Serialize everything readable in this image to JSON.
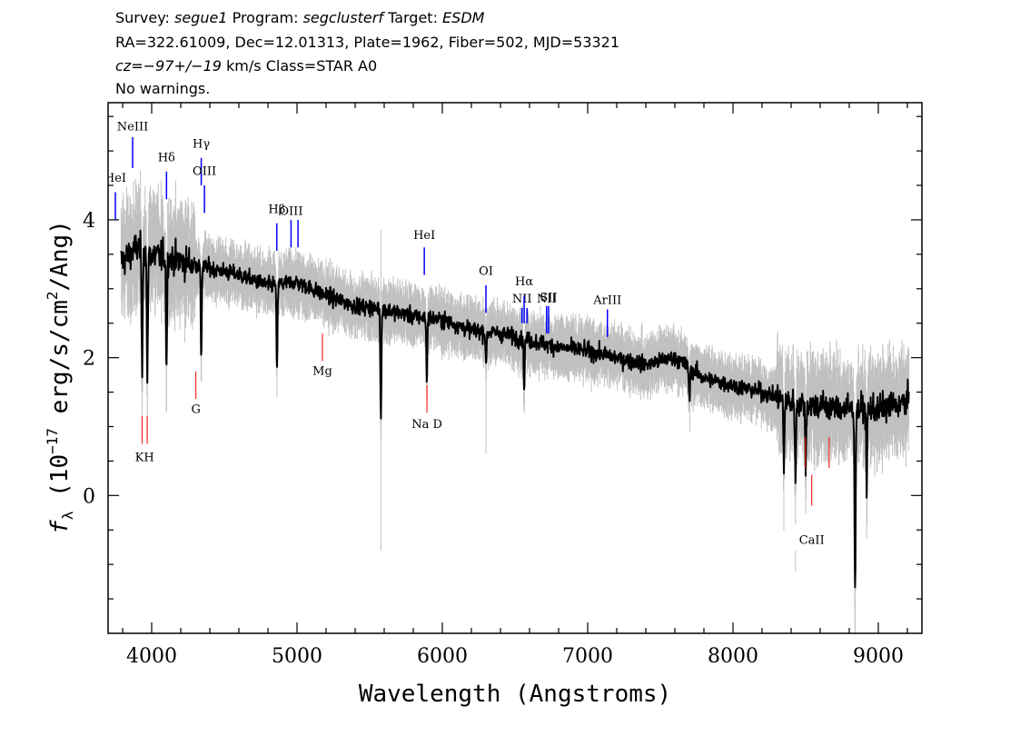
{
  "header": {
    "survey_label": "Survey:",
    "survey": "segue1",
    "program_label": "Program:",
    "program": "segclusterf",
    "target_label": "Target:",
    "target": "ESDM",
    "line2": "RA=322.61009, Dec=12.01313, Plate=1962, Fiber=502, MJD=53321",
    "cz_label": "cz=",
    "cz_value": "−97+/−19",
    "cz_units": "km/s Class=STAR A0",
    "warnings": "No warnings."
  },
  "colors": {
    "flux": "#000000",
    "noise": "#c0c0c0",
    "emission_lines": "#0000ff",
    "absorption_lines": "#ff0000"
  },
  "chart_data": {
    "type": "line",
    "xlabel": "Wavelength (Angstroms)",
    "ylabel_prefix": "f",
    "ylabel_subscript": "λ",
    "ylabel_main": " (10",
    "ylabel_exp1": "−17",
    "ylabel_mid": " erg/s/cm",
    "ylabel_exp2": "2",
    "ylabel_end": "/Ang)",
    "xlim": [
      3700,
      9300
    ],
    "ylim": [
      -2.0,
      5.7
    ],
    "xticks": [
      4000,
      5000,
      6000,
      7000,
      8000,
      9000
    ],
    "xtick_labels": [
      "4000",
      "5000",
      "6000",
      "7000",
      "8000",
      "9000"
    ],
    "yticks": [
      0,
      2,
      4
    ],
    "ytick_labels": [
      "0",
      "2",
      "4"
    ],
    "series": [
      {
        "x": [
          3800,
          3900,
          4000,
          4200,
          4400,
          4600,
          4800,
          5000,
          5200,
          5400,
          5600,
          5800,
          6000,
          6200,
          6400,
          6600,
          6800,
          7000,
          7200,
          7400,
          7600,
          7800,
          8000,
          8200,
          8400,
          8600,
          8800,
          9000,
          9200
        ],
        "values": [
          3.4,
          3.6,
          3.5,
          3.4,
          3.3,
          3.2,
          3.05,
          3.1,
          2.9,
          2.75,
          2.7,
          2.6,
          2.55,
          2.4,
          2.35,
          2.25,
          2.15,
          2.1,
          2.0,
          1.9,
          2.0,
          1.7,
          1.6,
          1.5,
          1.35,
          1.3,
          1.25,
          1.25,
          1.35
        ]
      }
    ],
    "absorption_dips": [
      {
        "x": 3934,
        "depth": 1.8
      },
      {
        "x": 3970,
        "depth": 2.0
      },
      {
        "x": 4102,
        "depth": 1.6
      },
      {
        "x": 4341,
        "depth": 1.3
      },
      {
        "x": 4862,
        "depth": 1.3
      },
      {
        "x": 5577,
        "depth": 1.6
      },
      {
        "x": 5893,
        "depth": 0.9
      },
      {
        "x": 6300,
        "depth": 0.5
      },
      {
        "x": 6563,
        "depth": 0.7
      },
      {
        "x": 7700,
        "depth": 0.5
      },
      {
        "x": 8350,
        "depth": 1.0
      },
      {
        "x": 8430,
        "depth": 1.2
      },
      {
        "x": 8500,
        "depth": 0.9
      },
      {
        "x": 8840,
        "depth": 2.8
      },
      {
        "x": 8920,
        "depth": 1.1
      }
    ],
    "emission_lines": [
      {
        "label": "HeI",
        "x": 3750,
        "top": 4.4,
        "bottom": 4.0,
        "label_y": 4.55
      },
      {
        "label": "NeIII",
        "x": 3869,
        "top": 5.2,
        "bottom": 4.75,
        "label_y": 5.3
      },
      {
        "label": "Hδ",
        "x": 4102,
        "top": 4.7,
        "bottom": 4.3,
        "label_y": 4.85
      },
      {
        "label": "Hγ",
        "x": 4341,
        "top": 4.9,
        "bottom": 4.5,
        "label_y": 5.05
      },
      {
        "label": "OIII",
        "x": 4363,
        "top": 4.5,
        "bottom": 4.1,
        "label_y": 4.65
      },
      {
        "label": "Hβ",
        "x": 4861,
        "top": 3.95,
        "bottom": 3.55,
        "label_y": 4.1
      },
      {
        "label": "OIII",
        "x": 4959,
        "top": 4.0,
        "bottom": 3.6,
        "label_y": 4.07
      },
      {
        "label": "",
        "x": 5007,
        "top": 4.0,
        "bottom": 3.6,
        "label_y": 0
      },
      {
        "label": "HeI",
        "x": 5876,
        "top": 3.6,
        "bottom": 3.2,
        "label_y": 3.72
      },
      {
        "label": "OI",
        "x": 6300,
        "top": 3.05,
        "bottom": 2.65,
        "label_y": 3.2
      },
      {
        "label": "NII",
        "x": 6548,
        "top": 2.72,
        "bottom": 2.5,
        "label_y": 2.8
      },
      {
        "label": "Hα",
        "x": 6563,
        "top": 2.9,
        "bottom": 2.5,
        "label_y": 3.05
      },
      {
        "label": "",
        "x": 6583,
        "top": 2.72,
        "bottom": 2.5,
        "label_y": 0
      },
      {
        "label": "NII",
        "x": 6717,
        "top": 2.75,
        "bottom": 2.35,
        "label_y": 2.8
      },
      {
        "label": "SII",
        "x": 6731,
        "top": 2.75,
        "bottom": 2.35,
        "label_y": 2.82
      },
      {
        "label": "ArIII",
        "x": 7136,
        "top": 2.7,
        "bottom": 2.3,
        "label_y": 2.78
      }
    ],
    "absorption_lines": [
      {
        "label": "KH",
        "x": 3951,
        "top": 1.15,
        "bottom": 0.75,
        "label_y": 0.5,
        "pair": [
          3934,
          3969
        ]
      },
      {
        "label": "G",
        "x": 4304,
        "top": 1.8,
        "bottom": 1.4,
        "label_y": 1.2
      },
      {
        "label": "Mg",
        "x": 5175,
        "top": 2.35,
        "bottom": 1.95,
        "label_y": 1.75
      },
      {
        "label": "Na D",
        "x": 5894,
        "top": 1.6,
        "bottom": 1.2,
        "label_y": 0.98
      },
      {
        "label": "CaII",
        "x": 8542,
        "top": 0.3,
        "bottom": -0.15,
        "label_y": -0.7,
        "extra": [
          8498,
          8662
        ]
      }
    ]
  }
}
